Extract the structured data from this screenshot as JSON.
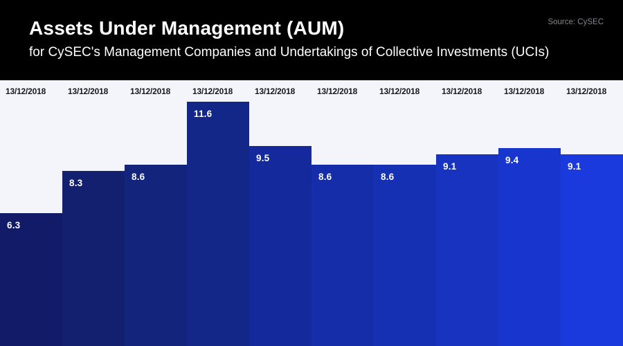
{
  "header": {
    "title": "Assets Under Management (AUM)",
    "subtitle": "for CySEC's Management Companies and Undertakings of Collective Investments (UCIs)",
    "source": "Source: CySEC"
  },
  "chart_data": {
    "type": "bar",
    "title": "Assets Under Management (AUM)",
    "subtitle": "for CySEC's Management Companies and Undertakings of Collective Investments (UCIs)",
    "source": "Source: CySEC",
    "categories": [
      "13/12/2018",
      "13/12/2018",
      "13/12/2018",
      "13/12/2018",
      "13/12/2018",
      "13/12/2018",
      "13/12/2018",
      "13/12/2018",
      "13/12/2018",
      "13/12/2018"
    ],
    "values": [
      6.3,
      8.3,
      8.6,
      11.6,
      9.5,
      8.6,
      8.6,
      9.1,
      9.4,
      9.1
    ],
    "xlabel": "",
    "ylabel": "",
    "ylim": [
      0,
      12.6
    ],
    "grid": false,
    "legend_position": "none",
    "bar_colors": [
      "#121b68",
      "#132070",
      "#13247c",
      "#132788",
      "#142a9c",
      "#152da8",
      "#1630b4",
      "#1733c0",
      "#1836ce",
      "#1a3ade"
    ],
    "value_label_color": "#ffffff",
    "category_label_color": "#16181f",
    "plot_background": "#f4f4fb",
    "header_background": "#000000"
  }
}
